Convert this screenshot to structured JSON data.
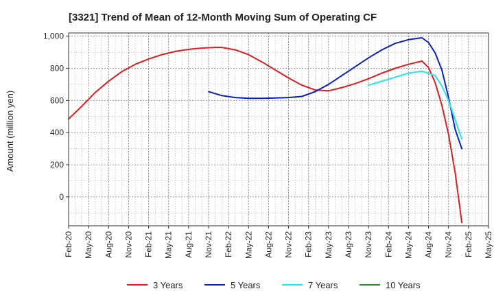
{
  "chart_data": {
    "type": "line",
    "title": "[3321]  Trend of Mean of 12-Month Moving Sum of Operating CF",
    "xlabel": "",
    "ylabel": "Amount (million yen)",
    "ylim": [
      -180,
      1020
    ],
    "yticks": [
      0,
      200,
      400,
      600,
      800,
      1000
    ],
    "ytick_labels": [
      "0",
      "200",
      "400",
      "600",
      "800",
      "1,000"
    ],
    "x_range": [
      "2020-02",
      "2025-05"
    ],
    "xtick_labels": [
      "Feb-20",
      "May-20",
      "Aug-20",
      "Nov-20",
      "Feb-21",
      "May-21",
      "Aug-21",
      "Nov-21",
      "Feb-22",
      "May-22",
      "Aug-22",
      "Nov-22",
      "Feb-23",
      "May-23",
      "Aug-23",
      "Nov-23",
      "Feb-24",
      "May-24",
      "Aug-24",
      "Nov-24",
      "Feb-25",
      "May-25"
    ],
    "grid": true,
    "legend_position": "bottom",
    "series": [
      {
        "name": "3 Years",
        "color": "#e31a1c",
        "points": [
          [
            "2020-02",
            485
          ],
          [
            "2020-04",
            565
          ],
          [
            "2020-06",
            650
          ],
          [
            "2020-08",
            720
          ],
          [
            "2020-10",
            780
          ],
          [
            "2020-12",
            825
          ],
          [
            "2021-02",
            858
          ],
          [
            "2021-04",
            885
          ],
          [
            "2021-06",
            905
          ],
          [
            "2021-08",
            918
          ],
          [
            "2021-10",
            926
          ],
          [
            "2021-12",
            930
          ],
          [
            "2022-01",
            930
          ],
          [
            "2022-03",
            915
          ],
          [
            "2022-05",
            885
          ],
          [
            "2022-07",
            840
          ],
          [
            "2022-09",
            790
          ],
          [
            "2022-11",
            740
          ],
          [
            "2023-01",
            695
          ],
          [
            "2023-03",
            665
          ],
          [
            "2023-05",
            660
          ],
          [
            "2023-07",
            680
          ],
          [
            "2023-09",
            705
          ],
          [
            "2023-11",
            735
          ],
          [
            "2024-01",
            770
          ],
          [
            "2024-03",
            800
          ],
          [
            "2024-05",
            825
          ],
          [
            "2024-07",
            845
          ],
          [
            "2024-08",
            805
          ],
          [
            "2024-09",
            710
          ],
          [
            "2024-10",
            570
          ],
          [
            "2024-11",
            390
          ],
          [
            "2024-12",
            150
          ],
          [
            "2025-01",
            -160
          ]
        ]
      },
      {
        "name": "5 Years",
        "color": "#0a1fc2",
        "points": [
          [
            "2021-11",
            655
          ],
          [
            "2022-01",
            630
          ],
          [
            "2022-03",
            618
          ],
          [
            "2022-05",
            613
          ],
          [
            "2022-07",
            613
          ],
          [
            "2022-09",
            615
          ],
          [
            "2022-11",
            618
          ],
          [
            "2023-01",
            625
          ],
          [
            "2023-03",
            655
          ],
          [
            "2023-05",
            700
          ],
          [
            "2023-07",
            755
          ],
          [
            "2023-09",
            810
          ],
          [
            "2023-11",
            865
          ],
          [
            "2024-01",
            915
          ],
          [
            "2024-03",
            955
          ],
          [
            "2024-05",
            978
          ],
          [
            "2024-07",
            990
          ],
          [
            "2024-08",
            960
          ],
          [
            "2024-09",
            895
          ],
          [
            "2024-10",
            790
          ],
          [
            "2024-11",
            620
          ],
          [
            "2024-12",
            420
          ],
          [
            "2025-01",
            300
          ]
        ]
      },
      {
        "name": "7 Years",
        "color": "#1ee8ef",
        "points": [
          [
            "2023-11",
            695
          ],
          [
            "2024-01",
            720
          ],
          [
            "2024-03",
            745
          ],
          [
            "2024-05",
            770
          ],
          [
            "2024-07",
            782
          ],
          [
            "2024-09",
            755
          ],
          [
            "2024-10",
            690
          ],
          [
            "2024-11",
            600
          ],
          [
            "2024-12",
            480
          ],
          [
            "2025-01",
            360
          ]
        ]
      },
      {
        "name": "10 Years",
        "color": "#1e8f1e",
        "points": []
      }
    ]
  }
}
